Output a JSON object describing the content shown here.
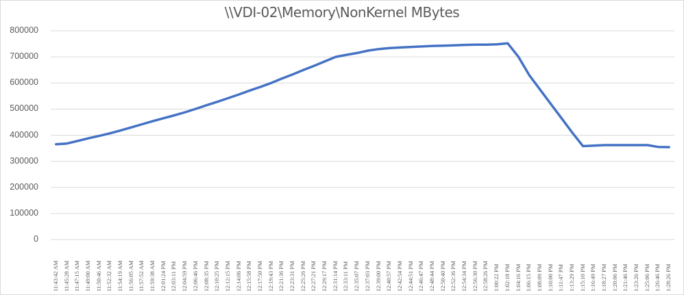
{
  "chart_data": {
    "type": "line",
    "title": "\\\\VDI-02\\Memory\\NonKernel MBytes",
    "xlabel": "",
    "ylabel": "",
    "ylim": [
      0,
      800000
    ],
    "yticks": [
      "0",
      "100000",
      "200000",
      "300000",
      "400000",
      "500000",
      "600000",
      "700000",
      "800000"
    ],
    "grid": true,
    "legend": null,
    "line_color": "#4472c4",
    "categories": [
      "11:43:42 AM",
      "11:45:28 AM",
      "11:47:15 AM",
      "11:49:00 AM",
      "11:50:46 AM",
      "11:52:32 AM",
      "11:54:19 AM",
      "11:56:05 AM",
      "11:57:52 AM",
      "11:59:38 AM",
      "12:01:24 PM",
      "12:03:11 PM",
      "12:04:59 PM",
      "12:06:46 PM",
      "12:08:35 PM",
      "12:10:25 PM",
      "12:12:15 PM",
      "12:14:06 PM",
      "12:15:58 PM",
      "12:17:50 PM",
      "12:19:43 PM",
      "12:21:36 PM",
      "12:23:31 PM",
      "12:25:26 PM",
      "12:27:21 PM",
      "12:29:17 PM",
      "12:31:14 PM",
      "12:33:11 PM",
      "12:35:07 PM",
      "12:37:03 PM",
      "12:39:00 PM",
      "12:40:57 PM",
      "12:42:54 PM",
      "12:44:51 PM",
      "12:46:47 PM",
      "12:48:44 PM",
      "12:50:40 PM",
      "12:52:36 PM",
      "12:54:34 PM",
      "12:56:30 PM",
      "12:58:26 PM",
      "1:00:22 PM",
      "1:02:18 PM",
      "1:04:16 PM",
      "1:06:15 PM",
      "1:08:09 PM",
      "1:10:00 PM",
      "1:11:47 PM",
      "1:13:29 PM",
      "1:15:10 PM",
      "1:16:49 PM",
      "1:18:27 PM",
      "1:20:06 PM",
      "1:21:46 PM",
      "1:23:26 PM",
      "1:25:06 PM",
      "1:26:46 PM",
      "1:28:26 PM"
    ],
    "series": [
      {
        "name": "\\\\VDI-02\\Memory\\NonKernel MBytes",
        "values": [
          365000,
          368000,
          378000,
          388000,
          397000,
          407000,
          418000,
          430000,
          442000,
          454000,
          465000,
          476000,
          488000,
          501000,
          515000,
          528000,
          542000,
          556000,
          571000,
          585000,
          600000,
          617000,
          633000,
          650000,
          666000,
          683000,
          700000,
          708000,
          715000,
          724000,
          730000,
          734000,
          736000,
          738000,
          740000,
          742000,
          743000,
          744000,
          746000,
          747000,
          747000,
          748000,
          752000,
          700000,
          630000,
          575000,
          520000,
          465000,
          410000,
          358000,
          360000,
          362000,
          362000,
          362000,
          362000,
          362000,
          355000,
          354000
        ]
      }
    ]
  }
}
